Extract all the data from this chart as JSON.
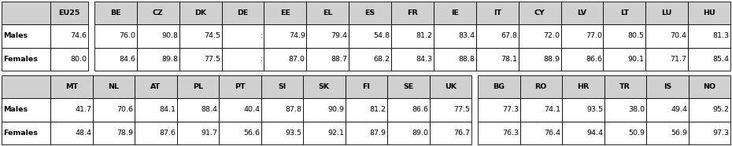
{
  "top_headers": [
    "",
    "EU25",
    "",
    "BE",
    "CZ",
    "DK",
    "DE",
    "EE",
    "EL",
    "ES",
    "FR",
    "IE",
    "IT",
    "CY",
    "LV",
    "LT",
    "LU",
    "HU"
  ],
  "top_rows": [
    [
      "Males",
      "74.6",
      "",
      "76.0",
      "90.8",
      "74.5",
      ":",
      "74.9",
      "79.4",
      "54.8",
      "81.2",
      "83.4",
      "67.8",
      "72.0",
      "77.0",
      "80.5",
      "70.4",
      "81.3"
    ],
    [
      "Females",
      "80.0",
      "",
      "84.6",
      "89.8",
      "77.5",
      ":",
      "87.0",
      "88.7",
      "68.2",
      "84.3",
      "88.8",
      "78.1",
      "88.9",
      "86.6",
      "90.1",
      "71.7",
      "85.4"
    ]
  ],
  "bot_headers": [
    "",
    "MT",
    "NL",
    "AT",
    "PL",
    "PT",
    "SI",
    "SK",
    "FI",
    "SE",
    "UK",
    "",
    "BG",
    "RO",
    "HR",
    "TR",
    "IS",
    "NO"
  ],
  "bot_rows": [
    [
      "Males",
      "41.7",
      "70.6",
      "84.1",
      "88.4",
      "40.4",
      "87.8",
      "90.9",
      "81.2",
      "86.6",
      "77.5",
      "",
      "77.3",
      "74.1",
      "93.5",
      "38.0",
      "49.4",
      "95.2"
    ],
    [
      "Females",
      "48.4",
      "78.9",
      "87.6",
      "91.7",
      "56.6",
      "93.5",
      "92.1",
      "87.9",
      "89.0",
      "76.7",
      "",
      "76.3",
      "76.4",
      "94.4",
      "50.9",
      "56.9",
      "97.3"
    ]
  ],
  "header_bg": "#d0d0d0",
  "fig_w": 9.3,
  "fig_h": 1.86,
  "dpi": 100
}
